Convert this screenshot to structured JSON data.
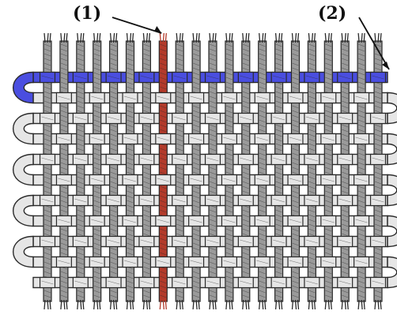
{
  "callouts": [
    {
      "id": "1",
      "text": "(1)",
      "points_to": "warp-yarn"
    },
    {
      "id": "2",
      "text": "(2)",
      "points_to": "weft-yarn"
    }
  ],
  "colors": {
    "warp_yarn": "#9a9a9a",
    "weft_yarn": "#e6e6e6",
    "yarn_outline": "#2a2a2a",
    "highlighted_warp": "#b33a2a",
    "highlighted_weft": "#4a4ee0",
    "background": "#ffffff"
  },
  "weave": {
    "pattern": "plain-weave",
    "warp_count": 21,
    "weft_count": 11,
    "highlighted_warp_index": 7,
    "highlighted_weft_index": 0
  }
}
